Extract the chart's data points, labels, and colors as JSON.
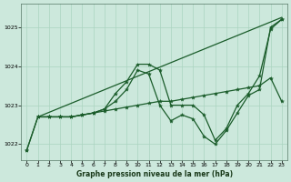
{
  "bg_color": "#cce8dc",
  "grid_color": "#aad4c0",
  "line_color": "#1a5c2a",
  "title": "Graphe pression niveau de la mer (hPa)",
  "xlim": [
    -0.5,
    23.5
  ],
  "ylim": [
    1021.6,
    1025.6
  ],
  "yticks": [
    1022,
    1023,
    1024,
    1025
  ],
  "xticks": [
    0,
    1,
    2,
    3,
    4,
    5,
    6,
    7,
    8,
    9,
    10,
    11,
    12,
    13,
    14,
    15,
    16,
    17,
    18,
    19,
    20,
    21,
    22,
    23
  ],
  "line_straight": {
    "x": [
      1,
      23
    ],
    "y": [
      1022.7,
      1025.25
    ]
  },
  "line_peak": {
    "x": [
      0,
      1,
      2,
      3,
      4,
      5,
      6,
      7,
      8,
      9,
      10,
      11,
      12,
      13,
      14,
      15,
      16,
      17,
      18,
      19,
      20,
      21,
      22,
      23
    ],
    "y": [
      1021.85,
      1022.7,
      1022.7,
      1022.7,
      1022.7,
      1022.75,
      1022.8,
      1022.9,
      1023.3,
      1023.6,
      1024.05,
      1024.05,
      1023.9,
      1023.0,
      1023.0,
      1023.0,
      1022.75,
      1022.1,
      1022.4,
      1023.0,
      1023.3,
      1023.75,
      1024.95,
      1025.2
    ]
  },
  "line_dip": {
    "x": [
      0,
      1,
      2,
      3,
      4,
      5,
      6,
      7,
      8,
      9,
      10,
      11,
      12,
      13,
      14,
      15,
      16,
      17,
      18,
      19,
      20,
      21,
      22,
      23
    ],
    "y": [
      1021.85,
      1022.7,
      1022.7,
      1022.7,
      1022.7,
      1022.75,
      1022.8,
      1022.9,
      1023.1,
      1023.4,
      1023.9,
      1023.8,
      1023.0,
      1022.6,
      1022.75,
      1022.65,
      1022.2,
      1022.0,
      1022.35,
      1022.8,
      1023.25,
      1023.4,
      1025.0,
      1025.2
    ]
  },
  "line_flat": {
    "x": [
      1,
      2,
      3,
      4,
      5,
      6,
      7,
      8,
      9,
      10,
      11,
      12,
      13,
      14,
      15,
      16,
      17,
      18,
      19,
      20,
      21,
      22,
      23
    ],
    "y": [
      1022.7,
      1022.7,
      1022.7,
      1022.7,
      1022.75,
      1022.8,
      1022.85,
      1022.9,
      1022.95,
      1023.0,
      1023.05,
      1023.1,
      1023.1,
      1023.15,
      1023.2,
      1023.25,
      1023.3,
      1023.35,
      1023.4,
      1023.45,
      1023.5,
      1023.7,
      1023.1
    ]
  }
}
